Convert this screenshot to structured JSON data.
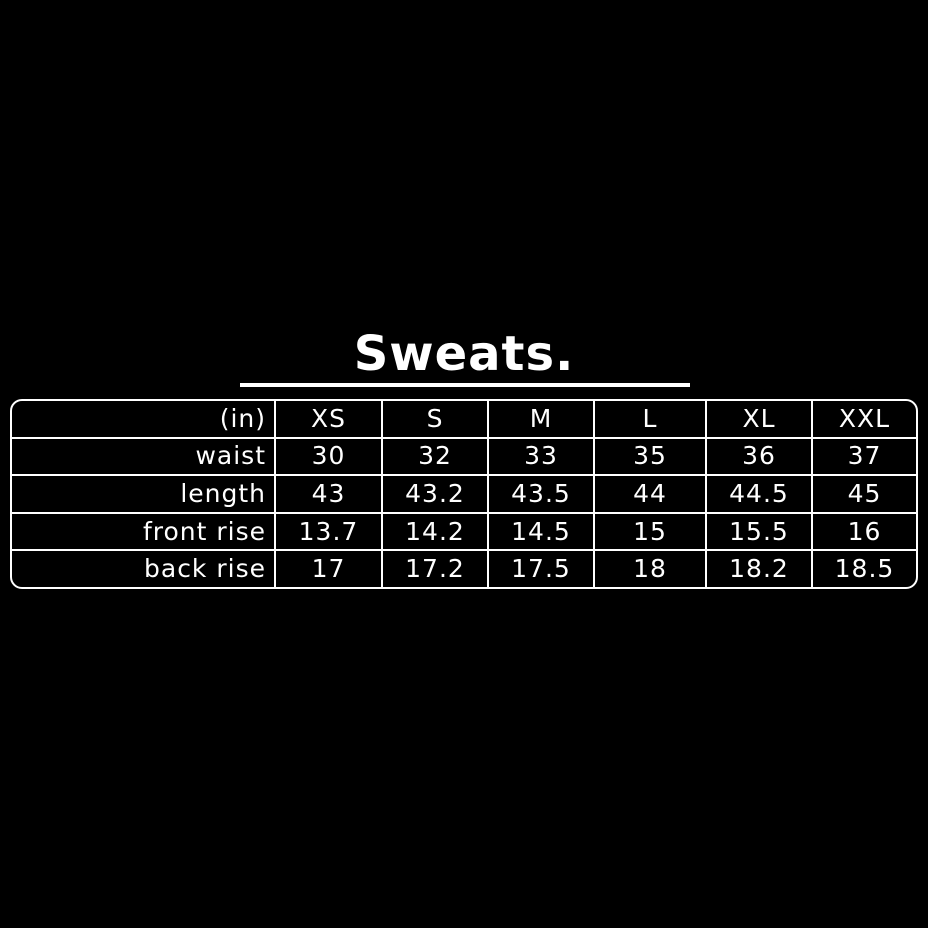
{
  "title": "Sweats.",
  "table": {
    "header": [
      "(in)",
      "XS",
      "S",
      "M",
      "L",
      "XL",
      "XXL"
    ],
    "rows": [
      [
        "waist",
        "30",
        "32",
        "33",
        "35",
        "36",
        "37"
      ],
      [
        "length",
        "43",
        "43.2",
        "43.5",
        "44",
        "44.5",
        "45"
      ],
      [
        "front rise",
        "13.7",
        "14.2",
        "14.5",
        "15",
        "15.5",
        "16"
      ],
      [
        "back rise",
        "17",
        "17.2",
        "17.5",
        "18",
        "18.2",
        "18.5"
      ]
    ]
  },
  "colors": {
    "background": "#000000",
    "foreground": "#ffffff"
  }
}
